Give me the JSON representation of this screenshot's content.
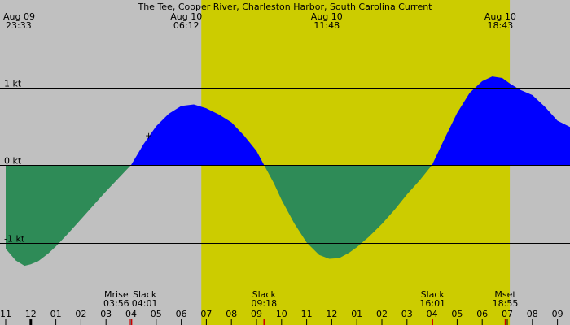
{
  "chart_data": {
    "type": "area",
    "title": "The Tee, Cooper River, Charleston Harbor, South Carolina Current",
    "y_unit": "kt",
    "ylim": [
      -1.4,
      1.4
    ],
    "y_ticks": [
      {
        "value": 1,
        "label": "1 kt"
      },
      {
        "value": 0,
        "label": "0 kt"
      },
      {
        "value": -1,
        "label": "-1 kt"
      }
    ],
    "x_hours": {
      "start": 23.0,
      "end": 45.8
    },
    "daylight": {
      "start": 30.8,
      "end": 43.1
    },
    "hour_labels": [
      "11",
      "12",
      "01",
      "02",
      "03",
      "04",
      "05",
      "06",
      "07",
      "08",
      "09",
      "10",
      "11",
      "12",
      "01",
      "02",
      "03",
      "04",
      "05",
      "06",
      "07",
      "08",
      "09"
    ],
    "hour_label_start": 23,
    "top_events": [
      {
        "date": "Aug 09",
        "time": "23:33",
        "t": 23.55,
        "anchor": "start"
      },
      {
        "date": "Aug 10",
        "time": "06:12",
        "t": 30.2,
        "anchor": "middle"
      },
      {
        "date": "Aug 10",
        "time": "11:48",
        "t": 35.8,
        "anchor": "middle"
      },
      {
        "date": "Aug 10",
        "time": "18:43",
        "t": 42.72,
        "anchor": "middle"
      }
    ],
    "bottom_events": [
      {
        "name": "Mrise",
        "time": "03:56",
        "t": 27.93
      },
      {
        "name": "Slack",
        "time": "04:01",
        "t": 28.02
      },
      {
        "name": "Slack",
        "time": "09:18",
        "t": 33.3
      },
      {
        "name": "Slack",
        "time": "16:01",
        "t": 40.02
      },
      {
        "name": "Mset",
        "time": "18:55",
        "t": 42.92
      }
    ],
    "series": [
      {
        "key": "current",
        "x": [
          23.0,
          23.4,
          23.75,
          24.0,
          24.3,
          24.7,
          25.0,
          25.5,
          26.0,
          26.5,
          27.0,
          27.5,
          28.0,
          28.5,
          29.0,
          29.5,
          30.0,
          30.5,
          31.0,
          31.5,
          32.0,
          32.5,
          33.0,
          33.3,
          33.7,
          34.0,
          34.5,
          35.0,
          35.5,
          35.9,
          36.3,
          36.7,
          37.0,
          37.5,
          38.0,
          38.5,
          39.0,
          39.5,
          40.0,
          40.5,
          41.0,
          41.5,
          42.0,
          42.4,
          42.8,
          43.1,
          43.5,
          44.0,
          44.5,
          45.0,
          45.5,
          45.8
        ],
        "values": [
          -1.08,
          -1.23,
          -1.3,
          -1.28,
          -1.24,
          -1.14,
          -1.05,
          -0.88,
          -0.7,
          -0.52,
          -0.34,
          -0.17,
          0.0,
          0.27,
          0.5,
          0.66,
          0.76,
          0.78,
          0.73,
          0.65,
          0.55,
          0.38,
          0.18,
          0.0,
          -0.24,
          -0.45,
          -0.75,
          -1.0,
          -1.16,
          -1.21,
          -1.2,
          -1.13,
          -1.06,
          -0.92,
          -0.76,
          -0.58,
          -0.38,
          -0.2,
          0.0,
          0.34,
          0.67,
          0.93,
          1.08,
          1.14,
          1.12,
          1.05,
          0.97,
          0.9,
          0.75,
          0.57,
          0.49,
          0.48
        ]
      }
    ],
    "annotations": [
      {
        "symbol": "+",
        "t": 28.7,
        "value": 0.38
      }
    ],
    "colors": {
      "background": "#c0c0c0",
      "daylight": "#cccc00",
      "flood": "#0000ff",
      "ebb": "#2e8b57",
      "event_marker": "#cc0000"
    }
  }
}
